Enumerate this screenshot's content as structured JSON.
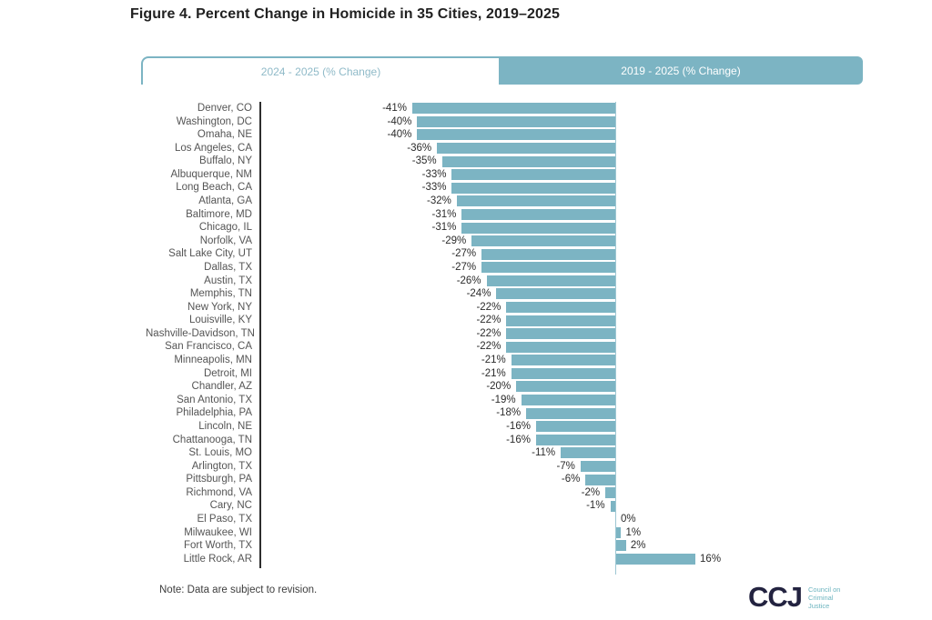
{
  "title": "Figure 4. Percent Change in Homicide in 35 Cities, 2019–2025",
  "tabs": [
    {
      "label": "2024 - 2025 (% Change)",
      "active": true
    },
    {
      "label": "2019 - 2025 (% Change)",
      "active": false
    }
  ],
  "chart_data": {
    "type": "bar",
    "orientation": "horizontal",
    "title": "Figure 4. Percent Change in Homicide in 35 Cities, 2019–2025",
    "value_unit": "%",
    "xlim": [
      -45,
      20
    ],
    "grid": false,
    "bar_color": "#7cb4c3",
    "categories": [
      "Denver, CO",
      "Washington, DC",
      "Omaha, NE",
      "Los Angeles, CA",
      "Buffalo, NY",
      "Albuquerque, NM",
      "Long Beach, CA",
      "Atlanta, GA",
      "Baltimore, MD",
      "Chicago, IL",
      "Norfolk, VA",
      "Salt Lake City, UT",
      "Dallas, TX",
      "Austin, TX",
      "Memphis, TN",
      "New York, NY",
      "Louisville, KY",
      "Nashville-Davidson, TN",
      "San Francisco, CA",
      "Minneapolis, MN",
      "Detroit, MI",
      "Chandler, AZ",
      "San Antonio, TX",
      "Philadelphia, PA",
      "Lincoln, NE",
      "Chattanooga, TN",
      "St. Louis, MO",
      "Arlington, TX",
      "Pittsburgh, PA",
      "Richmond, VA",
      "Cary, NC",
      "El Paso, TX",
      "Milwaukee, WI",
      "Fort Worth, TX",
      "Little Rock, AR"
    ],
    "values": [
      -41,
      -40,
      -40,
      -36,
      -35,
      -33,
      -33,
      -32,
      -31,
      -31,
      -29,
      -27,
      -27,
      -26,
      -24,
      -22,
      -22,
      -22,
      -22,
      -21,
      -21,
      -20,
      -19,
      -18,
      -16,
      -16,
      -11,
      -7,
      -6,
      -2,
      -1,
      0,
      1,
      2,
      16
    ],
    "value_labels": [
      "-41%",
      "-40%",
      "-40%",
      "-36%",
      "-35%",
      "-33%",
      "-33%",
      "-32%",
      "-31%",
      "-31%",
      "-29%",
      "-27%",
      "-27%",
      "-26%",
      "-24%",
      "-22%",
      "-22%",
      "-22%",
      "-22%",
      "-21%",
      "-21%",
      "-20%",
      "-19%",
      "-18%",
      "-16%",
      "-16%",
      "-11%",
      "-7%",
      "-6%",
      "-2%",
      "-1%",
      "0%",
      "1%",
      "2%",
      "16%"
    ]
  },
  "colors": {
    "accent_teal": "#7cb4c3",
    "axis_dark": "#2e2e2e",
    "logo_navy": "#232340",
    "logo_teal": "#6cb4bf"
  },
  "note": "Note: Data are subject to revision.",
  "logo": {
    "mark": "CCJ",
    "tagline_lines": [
      "Council on",
      "Criminal",
      "Justice"
    ]
  }
}
